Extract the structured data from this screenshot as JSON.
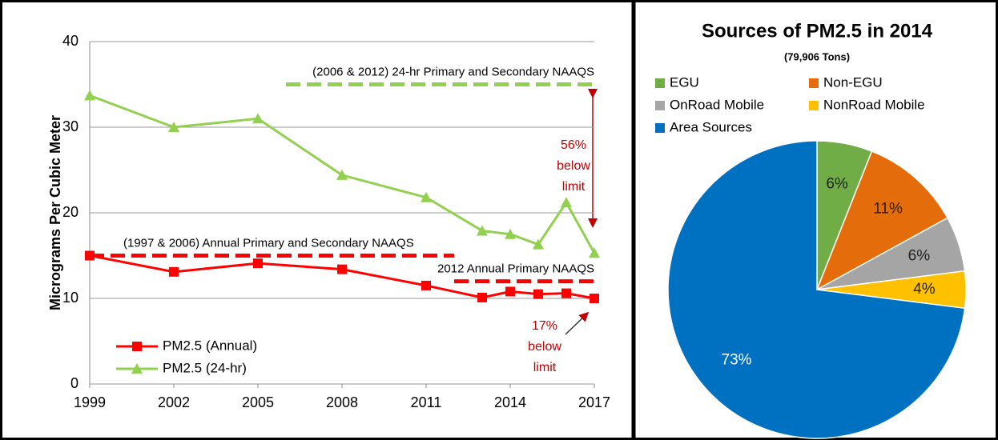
{
  "chart_data": [
    {
      "type": "line",
      "y_label": "Micrograms Per Cubic Meter",
      "x": [
        1999,
        2002,
        2005,
        2008,
        2011,
        2013,
        2014,
        2015,
        2016,
        2017
      ],
      "series": [
        {
          "name": "PM2.5 (Annual)",
          "color": "#ff0000",
          "marker": "square",
          "values": [
            15,
            13.1,
            14.1,
            13.4,
            11.5,
            10.1,
            10.8,
            10.5,
            10.6,
            10.0
          ]
        },
        {
          "name": "PM2.5 (24-hr)",
          "color": "#92d050",
          "marker": "triangle",
          "values": [
            33.7,
            30,
            31,
            24.4,
            21.8,
            17.9,
            17.5,
            16.3,
            21.2,
            15.3
          ]
        }
      ],
      "reference_lines": [
        {
          "label": "(2006 & 2012) 24-hr Primary and Secondary NAAQS",
          "value": 35,
          "x": [
            2006,
            2017
          ],
          "color": "#92d050"
        },
        {
          "label": "(1997 & 2006) Annual Primary and Secondary NAAQS",
          "value": 15,
          "x": [
            1999,
            2012
          ],
          "color": "#ff0000"
        },
        {
          "label": "2012 Annual Primary NAAQS",
          "value": 12,
          "x": [
            2012,
            2017
          ],
          "color": "#ff0000"
        }
      ],
      "annotations": [
        {
          "lines": [
            "56%",
            "below",
            "limit"
          ],
          "color": "#c00000"
        },
        {
          "lines": [
            "17%",
            "below",
            "limit"
          ],
          "color": "#c00000"
        }
      ],
      "xlim": [
        1999,
        2017
      ],
      "xticks": [
        1999,
        2002,
        2005,
        2008,
        2011,
        2014,
        2017
      ],
      "ylim": [
        0,
        40
      ],
      "yticks": [
        0,
        10,
        20,
        30,
        40
      ],
      "grid": true
    },
    {
      "type": "pie",
      "title": "Sources of PM2.5 in 2014",
      "subtitle": "(79,906 Tons)",
      "categories": [
        "EGU",
        "Non-EGU",
        "OnRoad Mobile",
        "NonRoad Mobile",
        "Area Sources"
      ],
      "values": [
        6,
        11,
        6,
        4,
        73
      ],
      "value_labels": [
        "6%",
        "11%",
        "6%",
        "4%",
        "73%"
      ],
      "colors": [
        "#70ad47",
        "#e46c0a",
        "#a5a5a5",
        "#ffc000",
        "#0070c0"
      ]
    }
  ]
}
